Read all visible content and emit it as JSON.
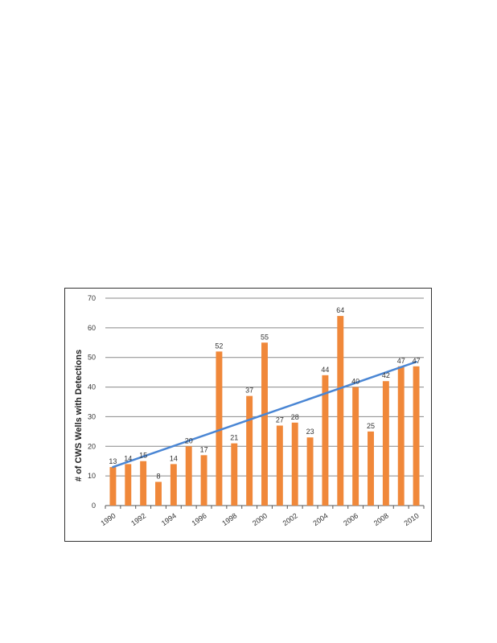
{
  "chart_data": {
    "type": "bar",
    "categories": [
      "1990",
      "1991",
      "1992",
      "1993",
      "1994",
      "1995",
      "1996",
      "1997",
      "1998",
      "1999",
      "2000",
      "2001",
      "2002",
      "2003",
      "2004",
      "2005",
      "2006",
      "2007",
      "2008",
      "2009",
      "2010"
    ],
    "x_tick_labels": [
      "1990",
      "1992",
      "1994",
      "1996",
      "1998",
      "2000",
      "2002",
      "2004",
      "2006",
      "2008",
      "2010"
    ],
    "values": [
      13,
      14,
      15,
      8,
      14,
      20,
      17,
      52,
      21,
      37,
      55,
      27,
      28,
      23,
      44,
      64,
      40,
      25,
      42,
      47,
      47
    ],
    "trendline": {
      "type": "linear",
      "start": 13,
      "end": 48.5
    },
    "title": "",
    "xlabel": "",
    "ylabel": "# of CWS Wells with Detections",
    "ylim": [
      0,
      70
    ],
    "yticks": [
      0,
      10,
      20,
      30,
      40,
      50,
      60,
      70
    ],
    "grid": true,
    "legend": "none",
    "colors": {
      "bar": "#F0883A",
      "trend": "#4A86D4",
      "grid": "#888888"
    }
  }
}
